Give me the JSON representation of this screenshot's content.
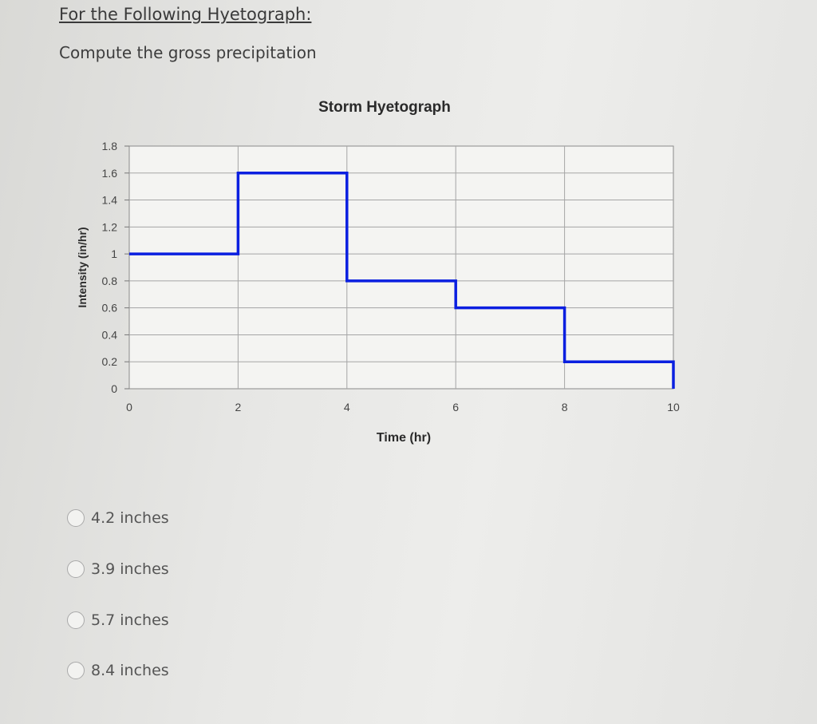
{
  "question": {
    "heading": "For the Following Hyetograph:",
    "prompt": "Compute the gross precipitation"
  },
  "chart_data": {
    "type": "line",
    "step": true,
    "title": "Storm Hyetograph",
    "xlabel": "Time (hr)",
    "ylabel": "Intensity (in/hr)",
    "xlim": [
      0,
      10
    ],
    "ylim": [
      0,
      1.8
    ],
    "x_ticks": [
      "0",
      "2",
      "4",
      "6",
      "8",
      "10"
    ],
    "y_ticks": [
      "0",
      "0.2",
      "0.4",
      "0.6",
      "0.8",
      "1",
      "1.2",
      "1.4",
      "1.6",
      "1.8"
    ],
    "grid": true,
    "series_color": "#0a1fe0",
    "series": [
      {
        "intervals": [
          {
            "start": 0,
            "end": 2,
            "value": 1.0
          },
          {
            "start": 2,
            "end": 4,
            "value": 1.6
          },
          {
            "start": 4,
            "end": 6,
            "value": 0.8
          },
          {
            "start": 6,
            "end": 8,
            "value": 0.6
          },
          {
            "start": 8,
            "end": 10,
            "value": 0.2
          }
        ]
      }
    ]
  },
  "options": [
    {
      "label": "4.2 inches"
    },
    {
      "label": "3.9 inches"
    },
    {
      "label": "5.7 inches"
    },
    {
      "label": "8.4 inches"
    }
  ]
}
